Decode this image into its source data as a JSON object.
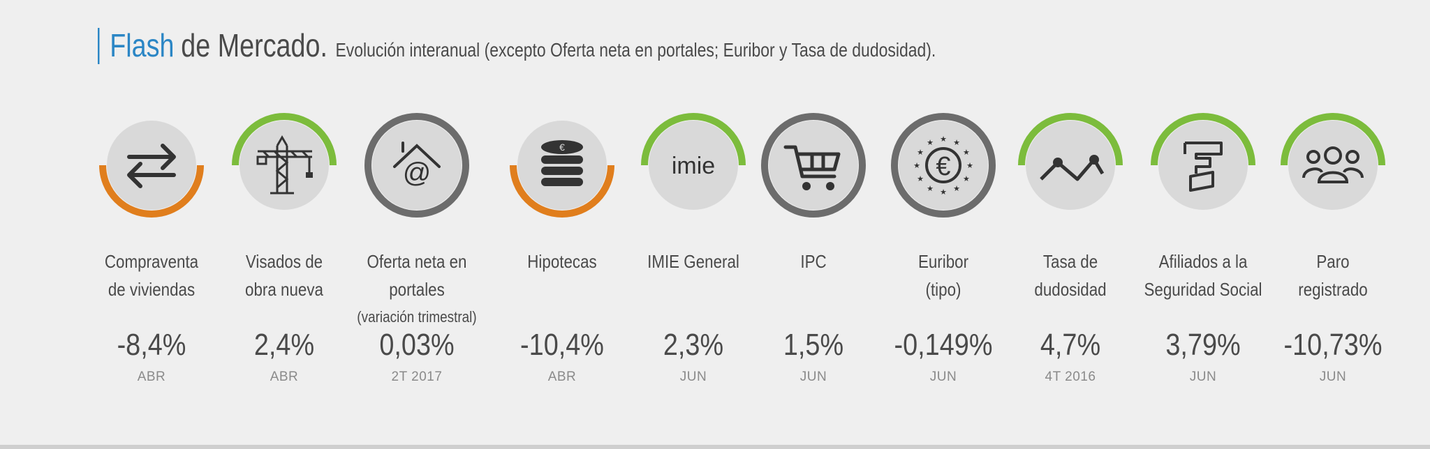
{
  "header": {
    "title_flash": "Flash",
    "title_main": "de Mercado.",
    "subtitle": "Evolución interanual (excepto Oferta neta en portales; Euribor y Tasa de dudosidad)."
  },
  "colors": {
    "green": "#7cbc3c",
    "orange": "#e07e1d",
    "grey_ring": "#6c6c6c",
    "circle": "#d9d9d9",
    "blue": "#2b86c5"
  },
  "indicators": [
    {
      "label1": "Compraventa",
      "label2": "de viviendas",
      "value": "-8,4%",
      "period": "ABR",
      "icon": "exchange-arrows-icon",
      "arc": "bottom",
      "arc_color": "#e07e1d"
    },
    {
      "label1": "Visados de",
      "label2": "obra nueva",
      "value": "2,4%",
      "period": "ABR",
      "icon": "crane-icon",
      "arc": "top",
      "arc_color": "#7cbc3c"
    },
    {
      "label1": "Oferta neta en portales",
      "label2": "(variación trimestral)",
      "value": "0,03%",
      "period": "2T 2017",
      "icon": "house-at-icon",
      "arc": "full",
      "arc_color": "#6c6c6c"
    },
    {
      "label1": "Hipotecas",
      "label2": "",
      "value": "-10,4%",
      "period": "ABR",
      "icon": "coin-stack-icon",
      "arc": "bottom",
      "arc_color": "#e07e1d"
    },
    {
      "label1": "IMIE General",
      "label2": "",
      "value": "2,3%",
      "period": "JUN",
      "icon": "imie-logo-icon",
      "arc": "top",
      "arc_color": "#7cbc3c"
    },
    {
      "label1": "IPC",
      "label2": "",
      "value": "1,5%",
      "period": "JUN",
      "icon": "shopping-cart-icon",
      "arc": "full",
      "arc_color": "#6c6c6c"
    },
    {
      "label1": "Euribor",
      "label2": "(tipo)",
      "value": "-0,149%",
      "period": "JUN",
      "icon": "euro-stars-icon",
      "arc": "full",
      "arc_color": "#6c6c6c"
    },
    {
      "label1": "Tasa de",
      "label2": "dudosidad",
      "value": "4,7%",
      "period": "4T 2016",
      "icon": "trend-line-icon",
      "arc": "top",
      "arc_color": "#7cbc3c"
    },
    {
      "label1": "Afiliados a la",
      "label2": "Seguridad Social",
      "value": "3,79%",
      "period": "JUN",
      "icon": "social-security-icon",
      "arc": "top",
      "arc_color": "#7cbc3c"
    },
    {
      "label1": "Paro",
      "label2": "registrado",
      "value": "-10,73%",
      "period": "JUN",
      "icon": "people-group-icon",
      "arc": "top",
      "arc_color": "#7cbc3c"
    }
  ]
}
